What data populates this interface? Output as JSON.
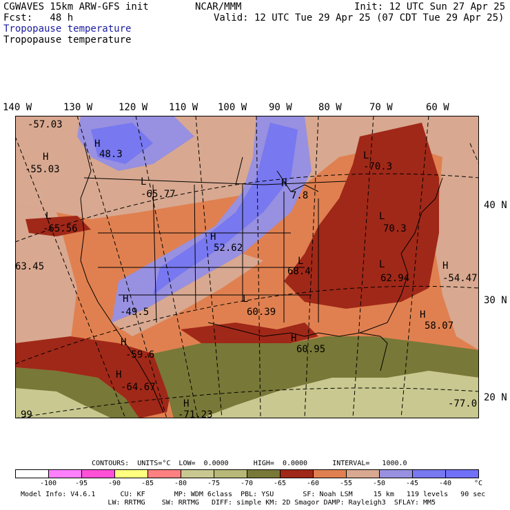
{
  "header": {
    "title": "CGWAVES 15km ARW-GFS init",
    "org": "NCAR/MMM",
    "init": "Init: 12 UTC Sun 27 Apr 25",
    "fcst": "Fcst:   48 h",
    "valid": "Valid: 12 UTC Tue 29 Apr 25 (07 CDT Tue 29 Apr 25)",
    "field_blue": "Tropopause temperature",
    "field_black": "Tropopause temperature"
  },
  "longitudes": [
    "140 W",
    "130 W",
    "120 W",
    "110 W",
    "100 W",
    "90 W",
    "80 W",
    "70 W",
    "60 W"
  ],
  "latitudes": [
    "40 N",
    "30 N",
    "20 N"
  ],
  "map_labels": [
    {
      "letter": "",
      "value": "-57.03"
    },
    {
      "letter": "H",
      "value": "48.3"
    },
    {
      "letter": "H",
      "value": "-55.03"
    },
    {
      "letter": "L",
      "value": "-65.77"
    },
    {
      "letter": "H",
      "value": "7.8"
    },
    {
      "letter": "L",
      "value": "-70.3"
    },
    {
      "letter": "L",
      "value": "-65.56"
    },
    {
      "letter": "H",
      "value": "52.62"
    },
    {
      "letter": "",
      "value": "63.45"
    },
    {
      "letter": "L",
      "value": "68.4"
    },
    {
      "letter": "L",
      "value": "70.3"
    },
    {
      "letter": "L",
      "value": "62.94"
    },
    {
      "letter": "H",
      "value": "-54.47"
    },
    {
      "letter": "H",
      "value": "-49.5"
    },
    {
      "letter": "L",
      "value": "60.39"
    },
    {
      "letter": "H",
      "value": "58.07"
    },
    {
      "letter": "H",
      "value": "-59.6"
    },
    {
      "letter": "H",
      "value": "60.95"
    },
    {
      "letter": "H",
      "value": "-64.67"
    },
    {
      "letter": "H",
      "value": "-71.23"
    },
    {
      "letter": "",
      "value": "-77.0"
    },
    {
      "letter": "",
      "value": "99"
    }
  ],
  "contours": {
    "label": "CONTOURS:  UNITS=°C  LOW=  0.0000      HIGH=  0.0000      INTERVAL=   1000.0"
  },
  "colorbar": {
    "colors": [
      "#ffffff",
      "#ff80ff",
      "#ff50d8",
      "#ffff80",
      "#ff8080",
      "#c8c890",
      "#b8b878",
      "#787838",
      "#a02818",
      "#e08050",
      "#d8a890",
      "#9890e0",
      "#7878f0",
      "#7070f8"
    ],
    "ticks": [
      "-100",
      "-95",
      "-90",
      "-85",
      "-80",
      "-75",
      "-70",
      "-65",
      "-60",
      "-55",
      "-50",
      "-45",
      "-40",
      "°C"
    ]
  },
  "footer": {
    "line1": "Model Info: V4.6.1      CU: KF       MP: WDM 6class  PBL: YSU       SF: Noah LSM     15 km   119 levels   90 sec",
    "line2": "                     LW: RRTMG    SW: RRTMG   DIFF: simple KM: 2D Smagor DAMP: Rayleigh3  SFLAY: MM5"
  }
}
